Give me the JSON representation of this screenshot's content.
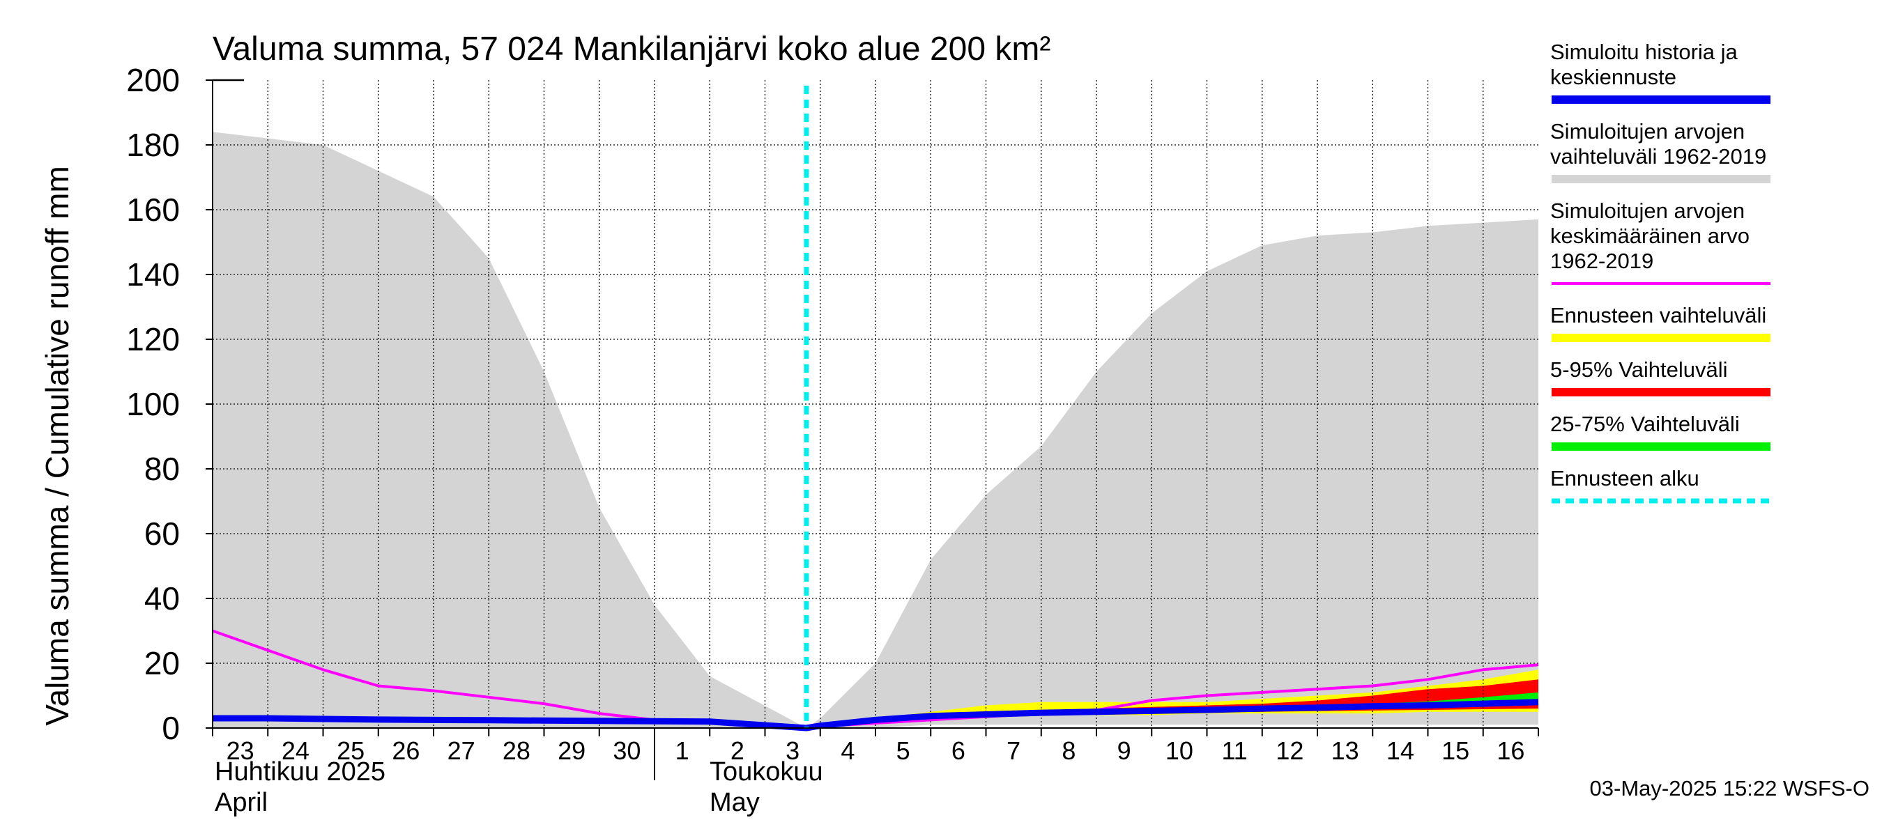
{
  "chart_data": {
    "type": "area",
    "title": "Valuma summa, 57 024 Mankilanjärvi koko alue 200 km²",
    "ylabel": "Valuma summa / Cumulative runoff    mm",
    "ylim": [
      0,
      200
    ],
    "yticks": [
      "0",
      "20",
      "40",
      "60",
      "80",
      "100",
      "120",
      "140",
      "160",
      "180",
      "200"
    ],
    "day_labels": [
      "23",
      "24",
      "25",
      "26",
      "27",
      "28",
      "29",
      "30",
      "1",
      "2",
      "3",
      "4",
      "5",
      "6",
      "7",
      "8",
      "9",
      "10",
      "11",
      "12",
      "13",
      "14",
      "15",
      "16"
    ],
    "x_start_day": 23,
    "month_labels": {
      "april_fi": "Huhtikuu  2025",
      "april_en": "April",
      "may_fi": "Toukokuu",
      "may_en": "May"
    },
    "forecast_start_day_index": 10.75,
    "series": [
      {
        "name": "Simuloitujen arvojen vaihteluväli 1962-2019",
        "kind": "band",
        "color": "#d4d4d4",
        "x": [
          0,
          1,
          2,
          3,
          4,
          5,
          6,
          7,
          8,
          9,
          10.75,
          11,
          12,
          13,
          14,
          15,
          16,
          17,
          18,
          19,
          20,
          21,
          22,
          23,
          24
        ],
        "upper": [
          184,
          182,
          180,
          172,
          164,
          145,
          110,
          68,
          38,
          16,
          0,
          3,
          20,
          52,
          72,
          87,
          110,
          128,
          141,
          149,
          152,
          153,
          155,
          156,
          157
        ],
        "lower": [
          0,
          0,
          0,
          0,
          0,
          0,
          0,
          0,
          0,
          0,
          0,
          0,
          0,
          1,
          1,
          1,
          1,
          1,
          1,
          1,
          1,
          1,
          1,
          1,
          1
        ]
      },
      {
        "name": "Ennusteen vaihteluväli",
        "kind": "band",
        "color": "#ffff00",
        "x": [
          10.75,
          11,
          12,
          13,
          14,
          15,
          16,
          17,
          18,
          19,
          20,
          21,
          22,
          23,
          24
        ],
        "upper": [
          0,
          1,
          3,
          5,
          7,
          8,
          8,
          8,
          8,
          9,
          10,
          11,
          13,
          15,
          18
        ],
        "lower": [
          0,
          0.5,
          1.5,
          2.5,
          3.5,
          4,
          4,
          4,
          4.5,
          4.5,
          4.5,
          4.5,
          5,
          5,
          5
        ]
      },
      {
        "name": "5-95% Vaihteluväli",
        "kind": "band",
        "color": "#ff0000",
        "x": [
          10.75,
          11,
          12,
          13,
          14,
          15,
          16,
          17,
          18,
          19,
          20,
          21,
          22,
          23,
          24
        ],
        "upper": [
          0,
          1,
          2.5,
          4,
          5,
          5.5,
          6,
          6.5,
          7,
          7.5,
          8.5,
          10,
          12,
          13,
          15
        ],
        "lower": [
          0,
          0.6,
          1.8,
          3,
          3.8,
          4.2,
          4.4,
          4.6,
          4.8,
          5,
          5.2,
          5.4,
          5.6,
          5.8,
          6
        ]
      },
      {
        "name": "25-75% Vaihteluväli",
        "kind": "band",
        "color": "#00ee00",
        "x": [
          10.75,
          11,
          12,
          13,
          14,
          15,
          16,
          17,
          18,
          19,
          20,
          21,
          22,
          23,
          24
        ],
        "upper": [
          0,
          0.8,
          2.2,
          3.5,
          4.3,
          4.8,
          5.2,
          5.6,
          6,
          6.5,
          7,
          7.5,
          8.2,
          9.5,
          11
        ],
        "lower": [
          0,
          0.7,
          2,
          3.2,
          4,
          4.4,
          4.7,
          5,
          5.3,
          5.6,
          6,
          6.4,
          6.8,
          7.4,
          8
        ]
      },
      {
        "name": "Simuloitujen arvojen keskimääräinen arvo 1962-2019",
        "kind": "line",
        "color": "#ff00ff",
        "x": [
          0,
          1,
          2,
          3,
          4,
          5,
          6,
          7,
          8,
          9,
          10.75,
          11,
          12,
          13,
          14,
          15,
          16,
          17,
          18,
          19,
          20,
          21,
          22,
          23,
          24
        ],
        "values": [
          30,
          24,
          18,
          13,
          11.5,
          9.5,
          7.5,
          4.5,
          2.5,
          1.5,
          0,
          0.5,
          1.5,
          2.5,
          3.5,
          4.5,
          5.5,
          8.5,
          10,
          11,
          12,
          13,
          15,
          18,
          19.5
        ]
      },
      {
        "name": "Simuloitu historia ja keskiennuste",
        "kind": "line",
        "color": "#0000ee",
        "x": [
          0,
          1,
          2,
          3,
          4,
          5,
          6,
          7,
          8,
          9,
          10.75,
          11,
          12,
          13,
          14,
          15,
          16,
          17,
          18,
          19,
          20,
          21,
          22,
          23,
          24
        ],
        "values": [
          3,
          3,
          2.8,
          2.6,
          2.5,
          2.4,
          2.3,
          2.2,
          2.1,
          2,
          0,
          0.7,
          2.5,
          3.7,
          4.2,
          4.7,
          5,
          5.3,
          5.6,
          6,
          6.3,
          6.7,
          7,
          7.5,
          8
        ]
      }
    ],
    "legend": [
      {
        "lines": [
          "Simuloitu historia ja",
          "keskiennuste"
        ],
        "color": "#0000ee",
        "style": "solid"
      },
      {
        "lines": [
          "Simuloitujen arvojen",
          "vaihteluväli 1962-2019"
        ],
        "color": "#d4d4d4",
        "style": "solid"
      },
      {
        "lines": [
          "Simuloitujen arvojen",
          "keskimääräinen arvo",
          "   1962-2019"
        ],
        "color": "#ff00ff",
        "style": "thin"
      },
      {
        "lines": [
          "Ennusteen vaihteluväli"
        ],
        "color": "#ffff00",
        "style": "solid"
      },
      {
        "lines": [
          "5-95% Vaihteluväli"
        ],
        "color": "#ff0000",
        "style": "solid"
      },
      {
        "lines": [
          "25-75% Vaihteluväli"
        ],
        "color": "#00ee00",
        "style": "solid"
      },
      {
        "lines": [
          "Ennusteen alku"
        ],
        "color": "#00eeee",
        "style": "dashed"
      }
    ],
    "forecast_line_color": "#00eeee",
    "footer": "03-May-2025 15:22 WSFS-O"
  }
}
